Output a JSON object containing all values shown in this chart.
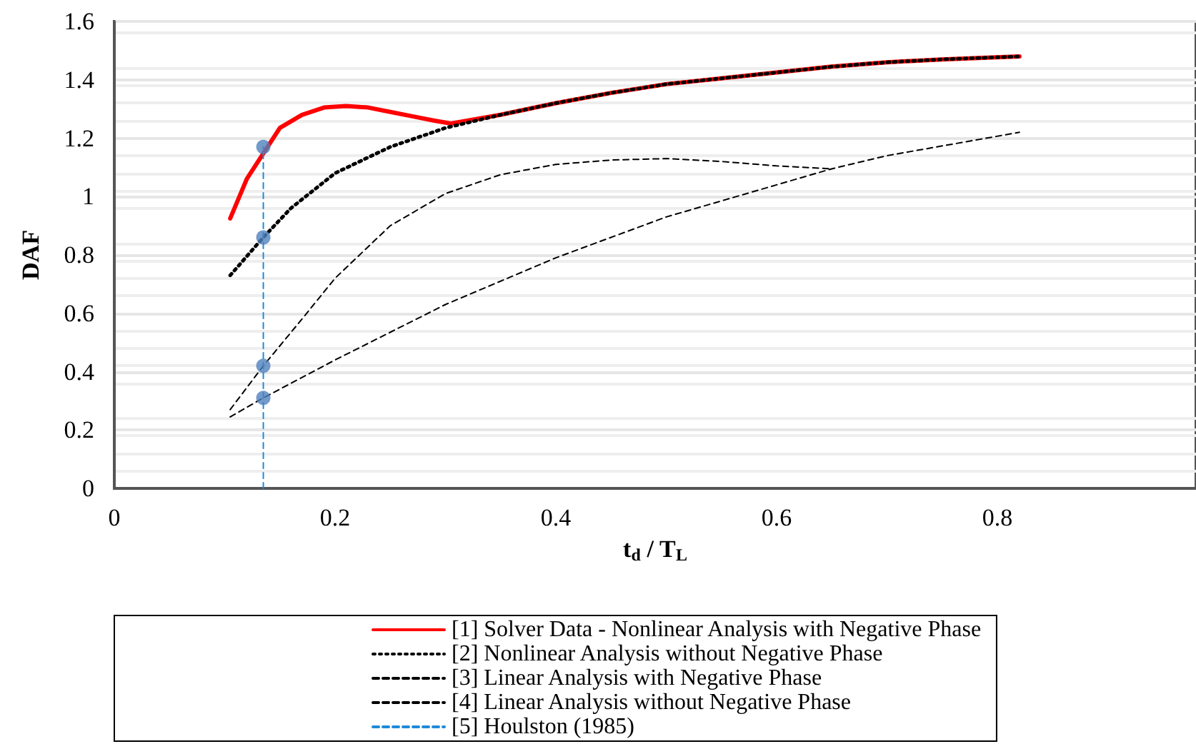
{
  "chart_data": {
    "type": "line",
    "xlabel": "t$_{d}$ / T$_{L}$",
    "ylabel": "DAF",
    "xlim": [
      0,
      0.98
    ],
    "ylim": [
      0,
      1.6
    ],
    "xticks": [
      0,
      0.2,
      0.4,
      0.6,
      0.8
    ],
    "yticks": [
      0,
      0.2,
      0.4,
      0.6,
      0.8,
      1,
      1.2,
      1.4,
      1.6
    ],
    "grid": true,
    "legend": "bottom",
    "marker": "none",
    "series": [
      {
        "name": "[1] Solver Data - Nonlinear Analysis with Negative Phase",
        "color": "#ff0000",
        "line_style": "solid",
        "x": [
          0.105,
          0.12,
          0.15,
          0.17,
          0.19,
          0.21,
          0.23,
          0.25,
          0.27,
          0.29,
          0.305,
          0.35,
          0.4,
          0.45,
          0.5,
          0.55,
          0.6,
          0.65,
          0.7,
          0.75,
          0.82
        ],
        "values": [
          0.925,
          1.06,
          1.235,
          1.28,
          1.305,
          1.31,
          1.305,
          1.29,
          1.275,
          1.26,
          1.25,
          1.28,
          1.32,
          1.355,
          1.385,
          1.405,
          1.425,
          1.445,
          1.46,
          1.47,
          1.48
        ]
      },
      {
        "name": "[2] Nonlinear Analysis without Negative Phase",
        "color": "#000000",
        "line_style": "dotted",
        "x": [
          0.105,
          0.135,
          0.16,
          0.2,
          0.25,
          0.3,
          0.35,
          0.4,
          0.45,
          0.5,
          0.55,
          0.6,
          0.65,
          0.7,
          0.75,
          0.82
        ],
        "values": [
          0.73,
          0.86,
          0.96,
          1.08,
          1.17,
          1.235,
          1.28,
          1.32,
          1.355,
          1.385,
          1.405,
          1.425,
          1.445,
          1.46,
          1.47,
          1.48
        ]
      },
      {
        "name": "[3] Linear Analysis with Negative Phase",
        "color": "#000000",
        "line_style": "dashed",
        "x": [
          0.105,
          0.135,
          0.17,
          0.2,
          0.25,
          0.3,
          0.35,
          0.4,
          0.45,
          0.5,
          0.55,
          0.6,
          0.65
        ],
        "values": [
          0.27,
          0.42,
          0.58,
          0.72,
          0.9,
          1.01,
          1.075,
          1.11,
          1.125,
          1.13,
          1.12,
          1.105,
          1.095
        ]
      },
      {
        "name": "[4] Linear Analysis without Negative Phase",
        "color": "#000000",
        "line_style": "dashed",
        "x": [
          0.105,
          0.135,
          0.2,
          0.3,
          0.4,
          0.5,
          0.6,
          0.65,
          0.7,
          0.82
        ],
        "values": [
          0.245,
          0.31,
          0.44,
          0.63,
          0.79,
          0.93,
          1.04,
          1.095,
          1.14,
          1.22
        ]
      },
      {
        "name": "[5] Houlston (1985)",
        "color": "#1f8ad8",
        "line_style": "dashed",
        "x": [
          0.135,
          0.135
        ],
        "values": [
          0,
          1.17
        ]
      },
      {
        "type": "scatter",
        "color": "#4f81bd",
        "marker": "circle",
        "x": [
          0.135,
          0.135,
          0.135,
          0.135
        ],
        "values": [
          0.31,
          0.42,
          0.86,
          1.17
        ]
      }
    ]
  }
}
